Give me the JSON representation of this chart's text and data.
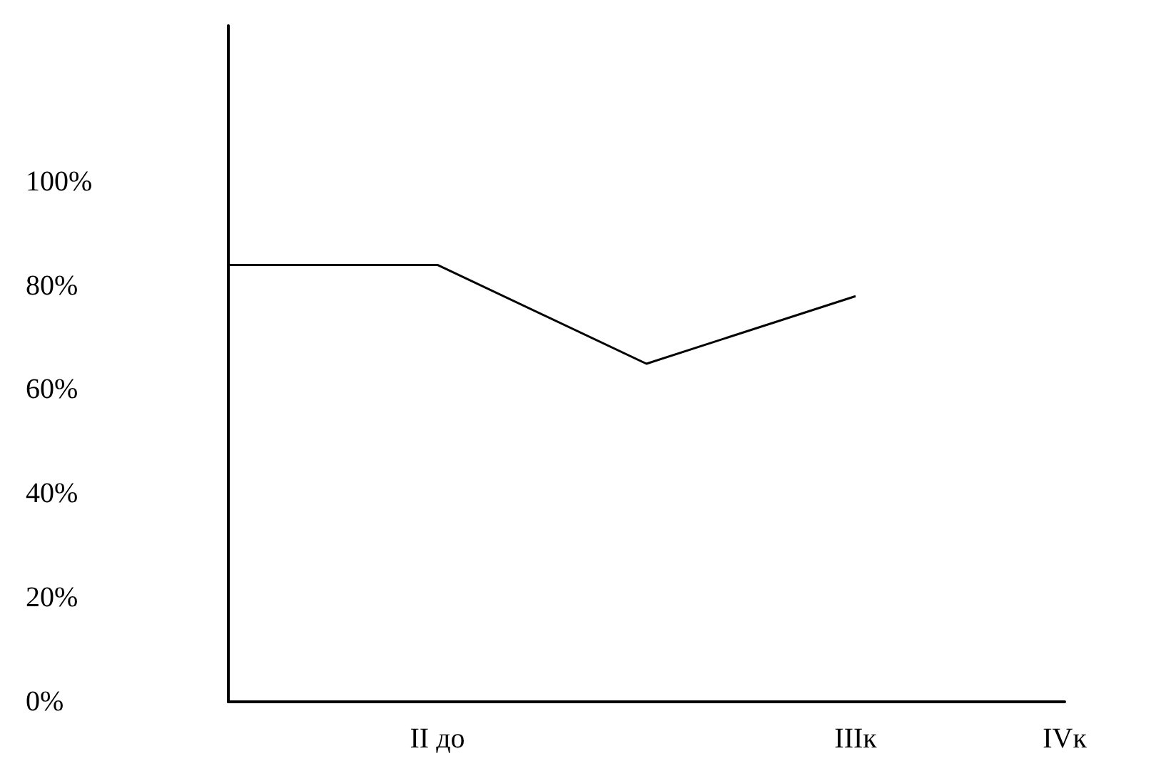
{
  "chart_data": {
    "type": "line",
    "categories": [
      null,
      "II до",
      null,
      "IIIк",
      "IVк"
    ],
    "series": [
      {
        "color": "#000000",
        "values": [
          84,
          84,
          65,
          78,
          null
        ]
      }
    ],
    "ylim": [
      0,
      130
    ],
    "yticks": [
      {
        "value": 0,
        "label": "0%"
      },
      {
        "value": 20,
        "label": "20%"
      },
      {
        "value": 40,
        "label": "40%"
      },
      {
        "value": 60,
        "label": "60%"
      },
      {
        "value": 80,
        "label": "80%"
      },
      {
        "value": 100,
        "label": "100%"
      }
    ],
    "grid": false,
    "marker": "none",
    "line_style": "solid"
  }
}
